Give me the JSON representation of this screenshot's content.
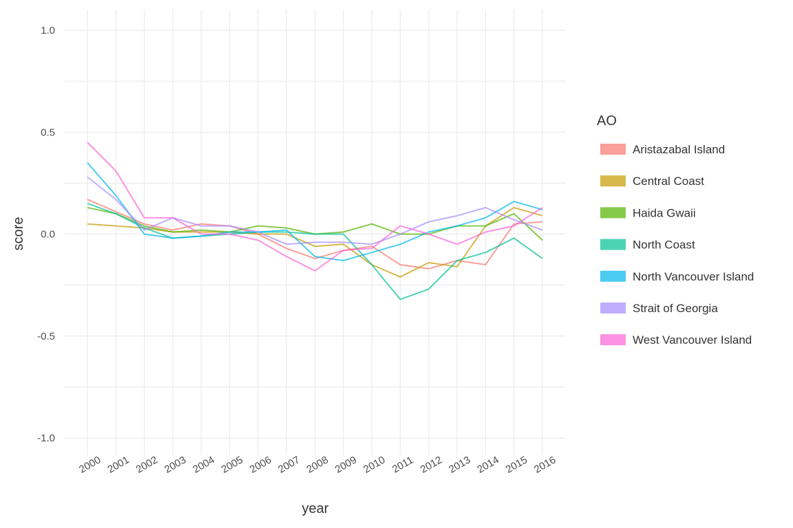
{
  "chart_data": {
    "type": "line",
    "xlabel": "year",
    "ylabel": "score",
    "x": [
      "2000",
      "2001",
      "2002",
      "2003",
      "2004",
      "2005",
      "2006",
      "2007",
      "2008",
      "2009",
      "2010",
      "2011",
      "2012",
      "2013",
      "2014",
      "2015",
      "2016"
    ],
    "ylim": [
      -1.0,
      1.0
    ],
    "yticks": [
      -1.0,
      -0.5,
      0.0,
      0.5,
      1.0
    ],
    "ytick_labels": [
      "-1.0",
      "-0.5",
      "0.0",
      "0.5",
      "1.0"
    ],
    "grid": true,
    "legend_title": "AO",
    "legend_position": "right",
    "series": [
      {
        "name": "Aristazabal Island",
        "color": "#F8766D",
        "values": [
          0.17,
          0.11,
          0.05,
          0.02,
          0.05,
          0.04,
          0.0,
          -0.07,
          -0.12,
          -0.08,
          -0.06,
          -0.15,
          -0.17,
          -0.13,
          -0.15,
          0.05,
          0.06
        ]
      },
      {
        "name": "Central Coast",
        "color": "#C49A00",
        "values": [
          0.05,
          0.04,
          0.03,
          0.01,
          0.01,
          0.01,
          0.0,
          0.0,
          -0.06,
          -0.05,
          -0.15,
          -0.21,
          -0.14,
          -0.16,
          0.04,
          0.13,
          0.09
        ]
      },
      {
        "name": "Haida Gwaii",
        "color": "#53B400",
        "values": [
          0.13,
          0.1,
          0.04,
          0.01,
          0.02,
          0.01,
          0.04,
          0.03,
          0.0,
          0.01,
          0.05,
          0.0,
          0.0,
          0.04,
          0.04,
          0.1,
          -0.03
        ]
      },
      {
        "name": "North Coast",
        "color": "#00C094",
        "values": [
          0.15,
          0.1,
          0.03,
          -0.02,
          -0.01,
          0.0,
          0.01,
          0.01,
          0.0,
          0.0,
          -0.15,
          -0.32,
          -0.27,
          -0.13,
          -0.09,
          -0.02,
          -0.12
        ]
      },
      {
        "name": "North Vancouver Island",
        "color": "#00B6EB",
        "values": [
          0.35,
          0.19,
          0.0,
          -0.02,
          -0.01,
          0.01,
          0.01,
          0.02,
          -0.11,
          -0.13,
          -0.09,
          -0.05,
          0.01,
          0.04,
          0.08,
          0.16,
          0.12
        ]
      },
      {
        "name": "Strait of Georgia",
        "color": "#A58AFF",
        "values": [
          0.28,
          0.17,
          0.02,
          0.08,
          0.04,
          0.04,
          0.01,
          -0.05,
          -0.04,
          -0.04,
          -0.05,
          0.0,
          0.06,
          0.09,
          0.13,
          0.07,
          0.02
        ]
      },
      {
        "name": "West Vancouver Island",
        "color": "#FB61D7",
        "values": [
          0.45,
          0.31,
          0.08,
          0.08,
          0.0,
          0.0,
          -0.03,
          -0.11,
          -0.18,
          -0.08,
          -0.07,
          0.04,
          0.0,
          -0.05,
          0.01,
          0.04,
          0.13
        ]
      }
    ]
  }
}
